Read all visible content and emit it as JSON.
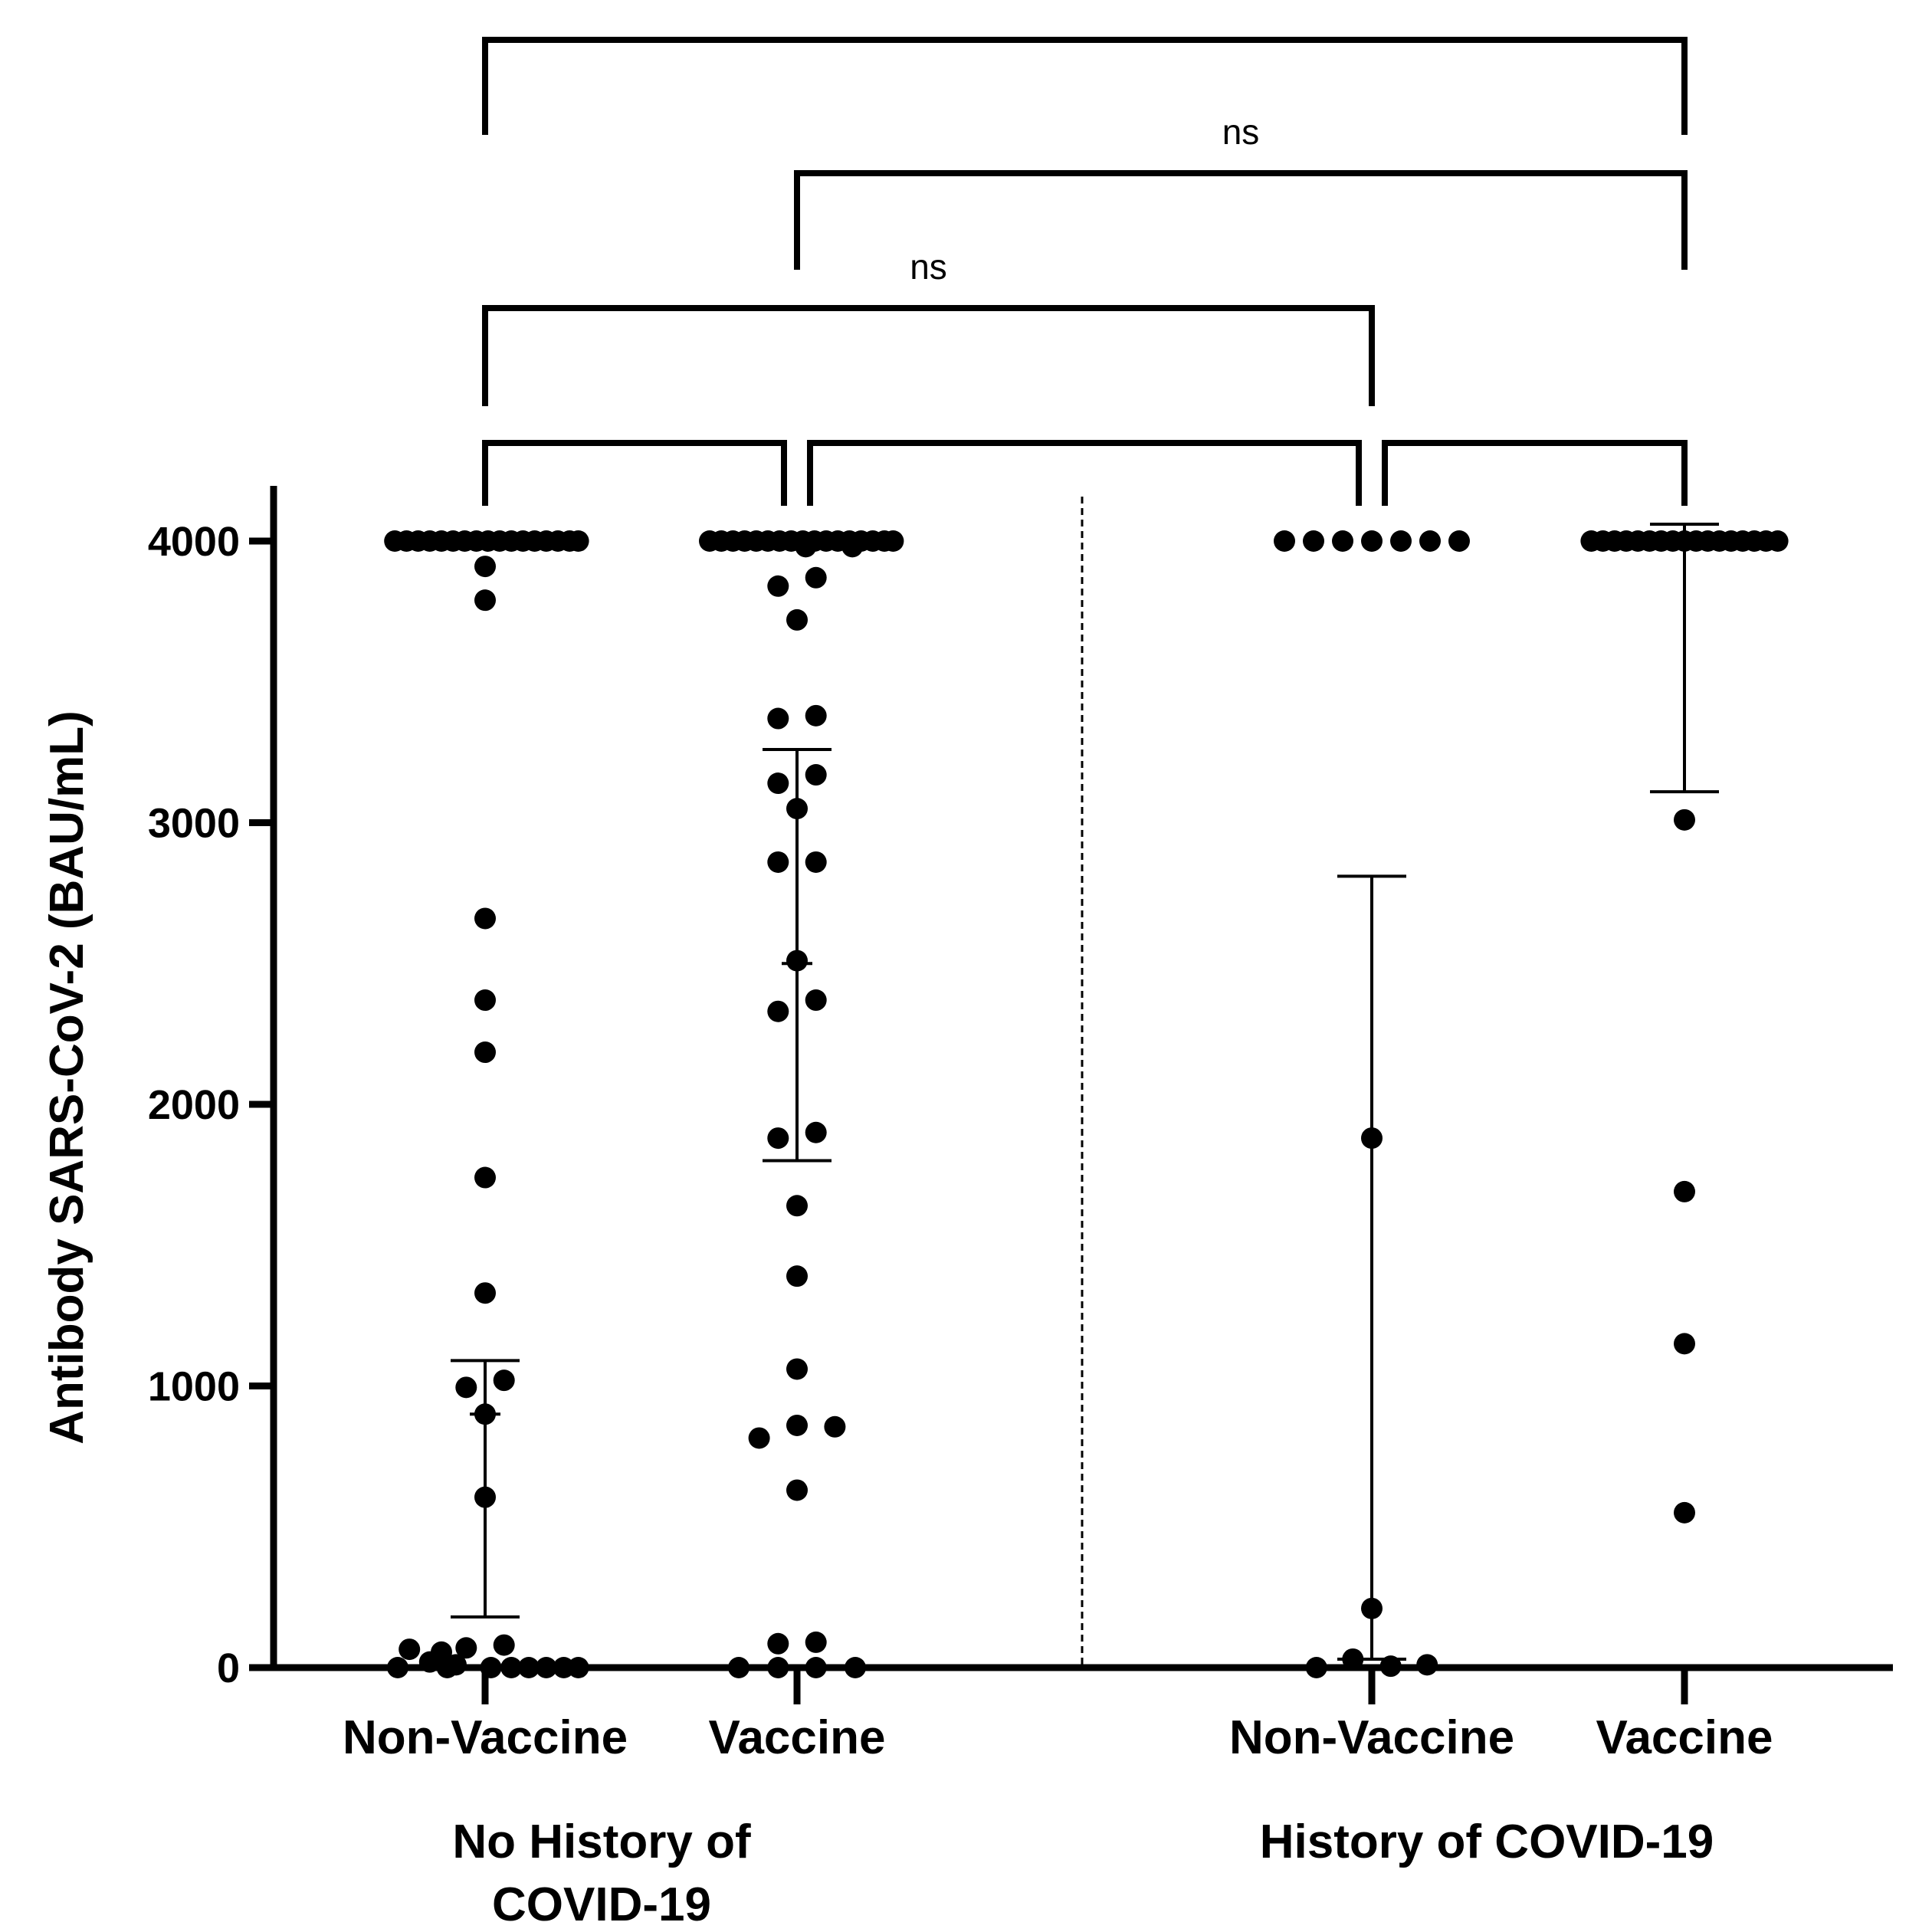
{
  "chart_data": {
    "type": "scatter",
    "title": "",
    "ylabel": "Antibody SARS-CoV-2 (BAU/mL)",
    "xlabel": "",
    "ylim": [
      0,
      4000
    ],
    "yticks": [
      0,
      1000,
      2000,
      3000,
      4000
    ],
    "ytick_labels": [
      "0",
      "1000",
      "2000",
      "3000",
      "4000"
    ],
    "groups": [
      {
        "label_lines": [
          "No History of",
          "COVID-19"
        ]
      },
      {
        "label_lines": [
          "History of COVID-19"
        ]
      }
    ],
    "series": [
      {
        "name": "Non-Vaccine",
        "group": 0,
        "median": 900,
        "q1": 180,
        "q3": 1090,
        "points": [
          {
            "y": 4000,
            "dx": -3.1
          },
          {
            "y": 4000,
            "dx": -2.7
          },
          {
            "y": 4000,
            "dx": -2.3
          },
          {
            "y": 4000,
            "dx": -1.9
          },
          {
            "y": 4000,
            "dx": -1.5
          },
          {
            "y": 4000,
            "dx": -1.1
          },
          {
            "y": 4000,
            "dx": -0.7
          },
          {
            "y": 4000,
            "dx": -0.3
          },
          {
            "y": 4000,
            "dx": 0.1
          },
          {
            "y": 4000,
            "dx": 0.5
          },
          {
            "y": 4000,
            "dx": 0.9
          },
          {
            "y": 4000,
            "dx": 1.3
          },
          {
            "y": 4000,
            "dx": 1.7
          },
          {
            "y": 4000,
            "dx": 2.1
          },
          {
            "y": 4000,
            "dx": 2.5
          },
          {
            "y": 4000,
            "dx": 2.9
          },
          {
            "y": 4000,
            "dx": 3.2
          },
          {
            "y": 3910,
            "dx": 0
          },
          {
            "y": 3790,
            "dx": 0
          },
          {
            "y": 2660,
            "dx": 0
          },
          {
            "y": 2370,
            "dx": 0
          },
          {
            "y": 2185,
            "dx": 0
          },
          {
            "y": 1740,
            "dx": 0
          },
          {
            "y": 1330,
            "dx": 0
          },
          {
            "y": 1020,
            "dx": 0.65
          },
          {
            "y": 995,
            "dx": -0.65
          },
          {
            "y": 900,
            "dx": 0
          },
          {
            "y": 605,
            "dx": 0
          },
          {
            "y": 80,
            "dx": 0.65
          },
          {
            "y": 70,
            "dx": -0.65
          },
          {
            "y": 65,
            "dx": -2.6
          },
          {
            "y": 55,
            "dx": -1.5
          },
          {
            "y": 20,
            "dx": -1.9
          },
          {
            "y": 10,
            "dx": -1.0
          },
          {
            "y": 0,
            "dx": -3.0
          },
          {
            "y": 0,
            "dx": -1.3
          },
          {
            "y": 0,
            "dx": 0.2
          },
          {
            "y": 0,
            "dx": 0.9
          },
          {
            "y": 0,
            "dx": 1.5
          },
          {
            "y": 0,
            "dx": 2.1
          },
          {
            "y": 0,
            "dx": 2.7
          },
          {
            "y": 0,
            "dx": 3.2
          }
        ]
      },
      {
        "name": "Vaccine",
        "group": 0,
        "median": 2500,
        "q1": 1800,
        "q3": 3260,
        "points": [
          {
            "y": 4000,
            "dx": -3.0
          },
          {
            "y": 4000,
            "dx": -2.6
          },
          {
            "y": 4000,
            "dx": -2.2
          },
          {
            "y": 4000,
            "dx": -1.8
          },
          {
            "y": 4000,
            "dx": -1.4
          },
          {
            "y": 4000,
            "dx": -1.0
          },
          {
            "y": 4000,
            "dx": -0.6
          },
          {
            "y": 4000,
            "dx": -0.2
          },
          {
            "y": 4000,
            "dx": 0.2
          },
          {
            "y": 4000,
            "dx": 0.6
          },
          {
            "y": 4000,
            "dx": 1.0
          },
          {
            "y": 4000,
            "dx": 1.4
          },
          {
            "y": 4000,
            "dx": 1.8
          },
          {
            "y": 4000,
            "dx": 2.2
          },
          {
            "y": 4000,
            "dx": 2.6
          },
          {
            "y": 4000,
            "dx": 3.0
          },
          {
            "y": 4000,
            "dx": 3.3
          },
          {
            "y": 3980,
            "dx": 0.3
          },
          {
            "y": 3980,
            "dx": 1.9
          },
          {
            "y": 3870,
            "dx": 0.65
          },
          {
            "y": 3840,
            "dx": -0.65
          },
          {
            "y": 3720,
            "dx": 0
          },
          {
            "y": 3380,
            "dx": 0.65
          },
          {
            "y": 3370,
            "dx": -0.65
          },
          {
            "y": 3170,
            "dx": 0.65
          },
          {
            "y": 3140,
            "dx": -0.65
          },
          {
            "y": 3050,
            "dx": 0
          },
          {
            "y": 2860,
            "dx": 0.65
          },
          {
            "y": 2860,
            "dx": -0.65
          },
          {
            "y": 2510,
            "dx": 0
          },
          {
            "y": 2370,
            "dx": 0.65
          },
          {
            "y": 2330,
            "dx": -0.65
          },
          {
            "y": 1900,
            "dx": 0.65
          },
          {
            "y": 1880,
            "dx": -0.65
          },
          {
            "y": 1640,
            "dx": 0
          },
          {
            "y": 1390,
            "dx": 0
          },
          {
            "y": 1060,
            "dx": 0
          },
          {
            "y": 860,
            "dx": 0
          },
          {
            "y": 855,
            "dx": 1.3
          },
          {
            "y": 815,
            "dx": -1.3
          },
          {
            "y": 630,
            "dx": 0
          },
          {
            "y": 90,
            "dx": 0.65
          },
          {
            "y": 85,
            "dx": -0.65
          },
          {
            "y": 0,
            "dx": -2.0
          },
          {
            "y": 0,
            "dx": -0.65
          },
          {
            "y": 0,
            "dx": 0.65
          },
          {
            "y": 0,
            "dx": 2.0
          }
        ]
      },
      {
        "name": "Non-Vaccine",
        "group": 1,
        "median": 30,
        "q1": 30,
        "q3": 2810,
        "points": [
          {
            "y": 4000,
            "dx": -3.0
          },
          {
            "y": 4000,
            "dx": -2.0
          },
          {
            "y": 4000,
            "dx": -1.0
          },
          {
            "y": 4000,
            "dx": 0
          },
          {
            "y": 4000,
            "dx": 1.0
          },
          {
            "y": 4000,
            "dx": 2.0
          },
          {
            "y": 4000,
            "dx": 3.0
          },
          {
            "y": 1880,
            "dx": 0
          },
          {
            "y": 210,
            "dx": 0
          },
          {
            "y": 30,
            "dx": -0.65
          },
          {
            "y": 10,
            "dx": 1.9
          },
          {
            "y": 5,
            "dx": 0.65
          },
          {
            "y": 0,
            "dx": -1.9
          }
        ]
      },
      {
        "name": "Vaccine",
        "group": 1,
        "median": 4000,
        "q1": 3110,
        "q3": 4060,
        "points": [
          {
            "y": 4000,
            "dx": -3.2
          },
          {
            "y": 4000,
            "dx": -2.8
          },
          {
            "y": 4000,
            "dx": -2.4
          },
          {
            "y": 4000,
            "dx": -2.0
          },
          {
            "y": 4000,
            "dx": -1.6
          },
          {
            "y": 4000,
            "dx": -1.2
          },
          {
            "y": 4000,
            "dx": -0.8
          },
          {
            "y": 4000,
            "dx": -0.4
          },
          {
            "y": 4000,
            "dx": 0
          },
          {
            "y": 4000,
            "dx": 0.4
          },
          {
            "y": 4000,
            "dx": 0.8
          },
          {
            "y": 4000,
            "dx": 1.2
          },
          {
            "y": 4000,
            "dx": 1.6
          },
          {
            "y": 4000,
            "dx": 2.0
          },
          {
            "y": 4000,
            "dx": 2.4
          },
          {
            "y": 4000,
            "dx": 2.8
          },
          {
            "y": 4000,
            "dx": 3.2
          },
          {
            "y": 3010,
            "dx": 0
          },
          {
            "y": 1690,
            "dx": 0
          },
          {
            "y": 1150,
            "dx": 0
          },
          {
            "y": 550,
            "dx": 0
          }
        ]
      }
    ],
    "comparisons": [
      {
        "from": 0,
        "to": 1,
        "level": 0,
        "label": ""
      },
      {
        "from": 1,
        "to": 2,
        "level": 0,
        "label": ""
      },
      {
        "from": 2,
        "to": 3,
        "level": 0,
        "label": ""
      },
      {
        "from": 0,
        "to": 2,
        "level": 1,
        "label": "ns"
      },
      {
        "from": 1,
        "to": 3,
        "level": 2,
        "label": "ns"
      },
      {
        "from": 0,
        "to": 3,
        "level": 3,
        "label": ""
      }
    ]
  }
}
